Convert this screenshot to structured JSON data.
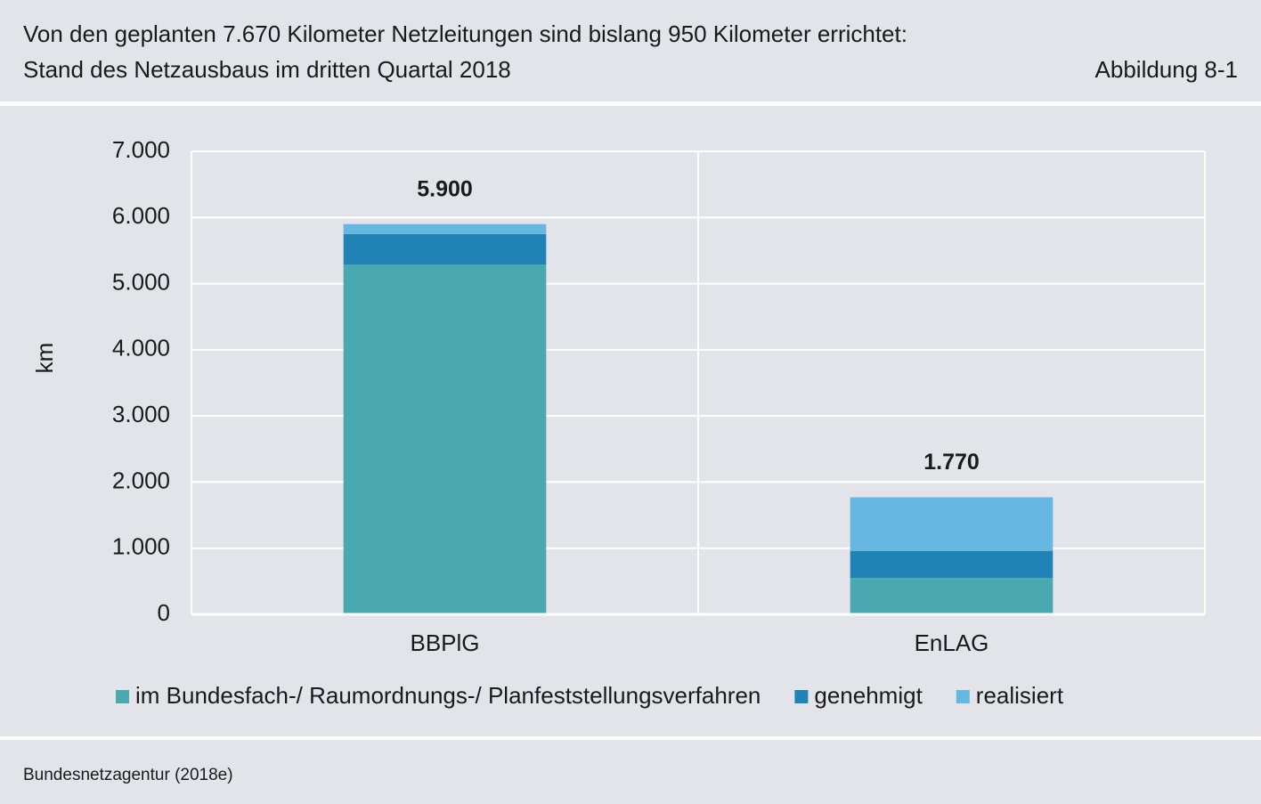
{
  "header": {
    "title": "Von den geplanten 7.670 Kilometer Netzleitungen sind bislang 950 Kilometer errichtet:",
    "subtitle": "Stand des Netzausbaus im dritten Quartal 2018",
    "figure": "Abbildung 8-1"
  },
  "chart_data": {
    "type": "stacked_bar",
    "y_label": "km",
    "categories": [
      "BBPlG",
      "EnLAG"
    ],
    "series": [
      {
        "name": "im Bundesfach-/ Raumordnungs-/ Planfeststellungsverfahren",
        "color": "#4aa9b0",
        "values": [
          5290,
          550
        ]
      },
      {
        "name": "genehmigt",
        "color": "#1f83b5",
        "values": [
          460,
          410
        ]
      },
      {
        "name": "realisiert",
        "color": "#66b8e3",
        "values": [
          150,
          810
        ]
      }
    ],
    "totals": {
      "values": [
        5900,
        1770
      ],
      "value_labels": [
        "5.900",
        "1.770"
      ]
    },
    "ylim": [
      0,
      7000
    ],
    "yticks": [
      0,
      {
        "value": 1000,
        "label": "1.000"
      },
      {
        "value": 2000,
        "label": "2.000"
      },
      {
        "value": 3000,
        "label": "3.000"
      },
      {
        "value": 4000,
        "label": "4.000"
      },
      {
        "value": 5000,
        "label": "5.000"
      },
      {
        "value": 6000,
        "label": "6.000"
      },
      {
        "value": 7000,
        "label": "7.000"
      }
    ],
    "grid": true
  },
  "footer": {
    "source": "Bundesnetzagentur (2018e)"
  }
}
